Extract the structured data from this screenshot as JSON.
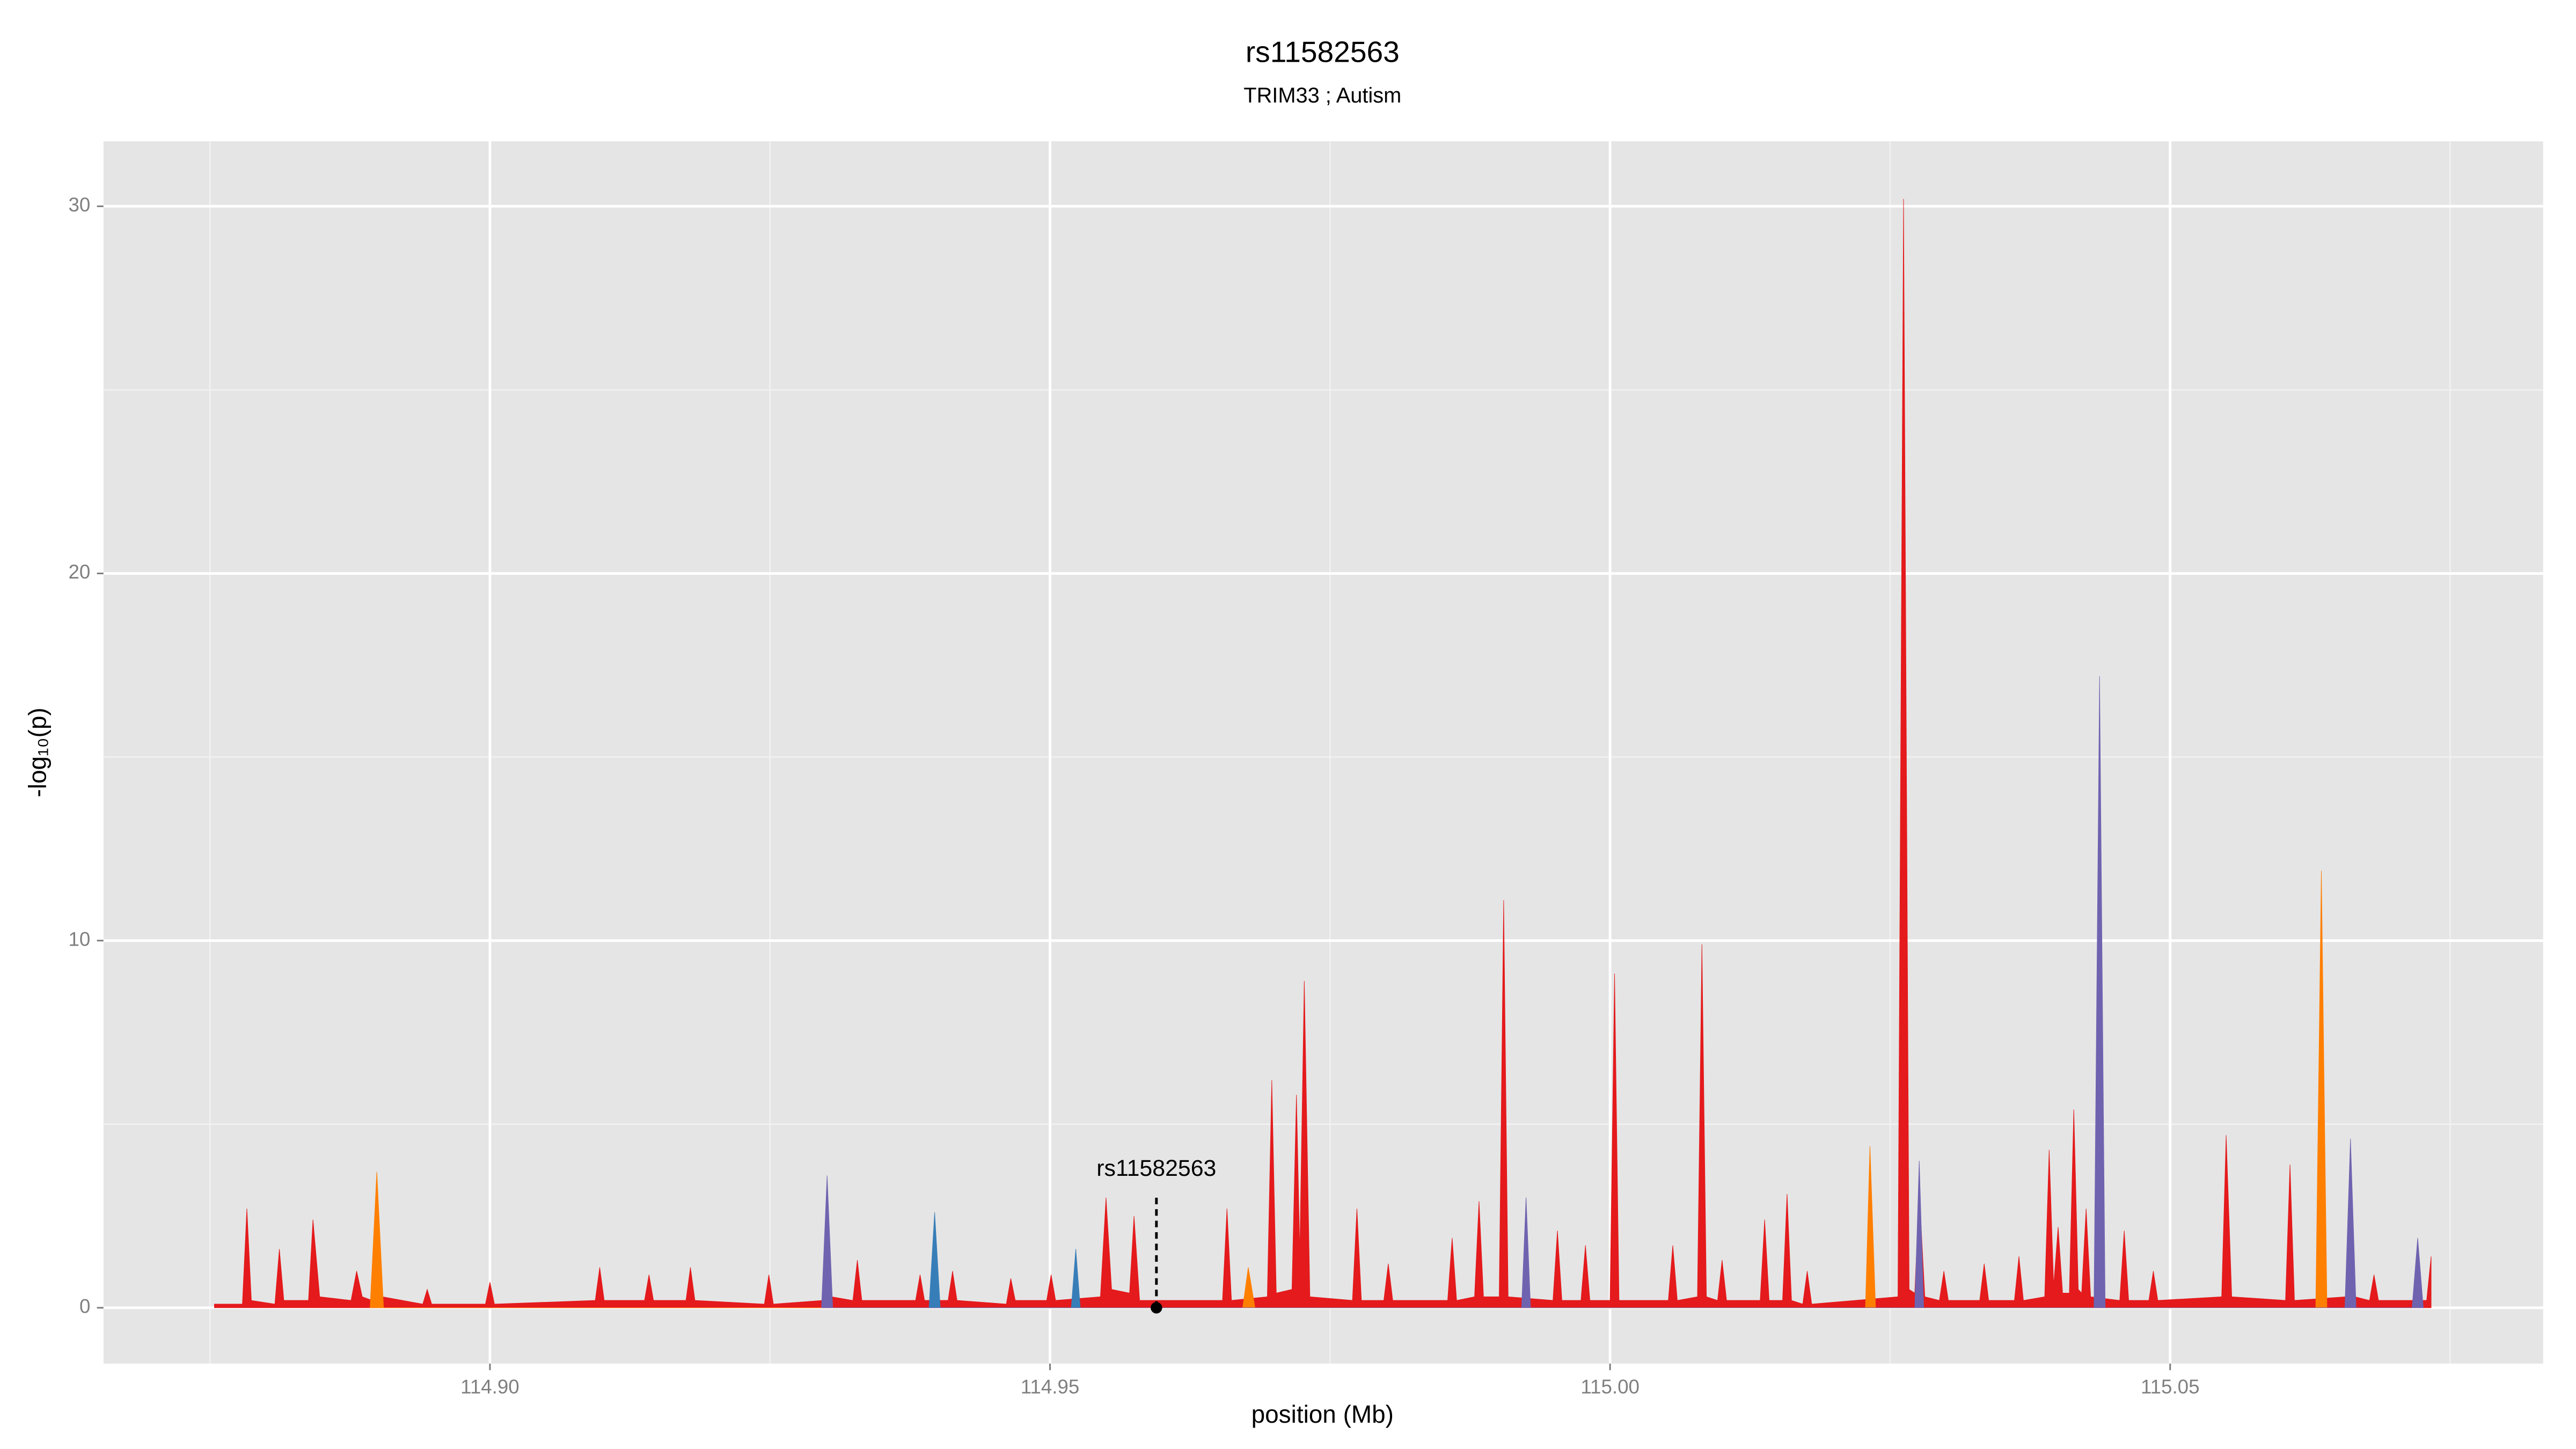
{
  "chart_data": {
    "type": "area",
    "title": "rs11582563",
    "subtitle": "TRIM33 ; Autism",
    "x_label": "position (Mb)",
    "y_label": "-log₁₀(p)",
    "xlim": [
      114.8655,
      115.0833
    ],
    "ylim": [
      -1.52,
      31.77
    ],
    "xticks": [
      {
        "value": 114.9,
        "label": "114.90"
      },
      114.95,
      {
        "value": 115.0,
        "label": "115.00"
      },
      115.05
    ],
    "yticks": [
      0,
      10,
      20,
      30
    ],
    "grid": true,
    "annotation": {
      "text": "rs11582563",
      "x": 114.9595,
      "y": 0
    },
    "series": [
      {
        "color": "#e41a1c",
        "x": [
          114.8754,
          114.8779,
          114.8783,
          114.8787,
          114.8808,
          114.8812,
          114.8816,
          114.8838,
          114.8842,
          114.8848,
          114.8876,
          114.8881,
          114.8886,
          114.8895,
          114.8899,
          114.8904,
          114.894,
          114.8944,
          114.8948,
          114.8996,
          114.9,
          114.9004,
          114.9094,
          114.9098,
          114.9102,
          114.9138,
          114.9142,
          114.9146,
          114.9175,
          114.9179,
          114.9183,
          114.9245,
          114.9249,
          114.9253,
          114.9297,
          114.9301,
          114.9305,
          114.9324,
          114.9328,
          114.9332,
          114.938,
          114.9384,
          114.9388,
          114.9409,
          114.9413,
          114.9417,
          114.9461,
          114.9465,
          114.9469,
          114.9497,
          114.9501,
          114.9505,
          114.9545,
          114.955,
          114.9555,
          114.9571,
          114.9575,
          114.958,
          114.9654,
          114.9658,
          114.9662,
          114.9694,
          114.9698,
          114.9702,
          114.9716,
          114.972,
          114.9723,
          114.9727,
          114.9732,
          114.977,
          114.9774,
          114.9778,
          114.9798,
          114.9802,
          114.9806,
          114.9855,
          114.9859,
          114.9863,
          114.9879,
          114.9883,
          114.9887,
          114.9901,
          114.9905,
          114.9909,
          114.9949,
          114.9953,
          114.9957,
          114.9974,
          114.9978,
          114.9982,
          115.0,
          115.0004,
          115.0008,
          115.0052,
          115.0056,
          115.006,
          115.0078,
          115.0082,
          115.0086,
          115.0096,
          115.01,
          115.0104,
          115.0134,
          115.0138,
          115.0142,
          115.0154,
          115.0158,
          115.0162,
          115.0172,
          115.0176,
          115.018,
          115.0257,
          115.0262,
          115.0267,
          115.0272,
          115.0276,
          115.0281,
          115.0294,
          115.0298,
          115.0302,
          115.033,
          115.0334,
          115.0338,
          115.0361,
          115.0365,
          115.0369,
          115.0388,
          115.0392,
          115.0396,
          115.04,
          115.0404,
          115.041,
          115.0414,
          115.0418,
          115.0421,
          115.0425,
          115.0429,
          115.0455,
          115.0459,
          115.0463,
          115.0481,
          115.0485,
          115.0489,
          115.0546,
          115.055,
          115.0555,
          115.0603,
          115.0607,
          115.0611,
          115.0657,
          115.0661,
          115.0665,
          115.0678,
          115.0682,
          115.0686,
          115.0717,
          115.0721,
          115.0725,
          115.0729,
          115.0733
        ],
        "values": [
          0.1,
          0.1,
          2.7,
          0.2,
          0.1,
          1.6,
          0.2,
          0.2,
          2.4,
          0.3,
          0.2,
          1,
          0.3,
          0.2,
          2.5,
          0.3,
          0.1,
          0.5,
          0.1,
          0.1,
          0.7,
          0.1,
          0.2,
          1.1,
          0.2,
          0.2,
          0.9,
          0.2,
          0.2,
          1.1,
          0.2,
          0.1,
          0.9,
          0.1,
          0.2,
          3.2,
          0.3,
          0.2,
          1.3,
          0.2,
          0.2,
          0.9,
          0.2,
          0.2,
          1,
          0.2,
          0.1,
          0.8,
          0.2,
          0.2,
          0.9,
          0.2,
          0.3,
          3,
          0.5,
          0.4,
          2.5,
          0.2,
          0.2,
          2.7,
          0.2,
          0.3,
          6.2,
          0.4,
          0.5,
          5.8,
          1.5,
          8.9,
          0.3,
          0.2,
          2.7,
          0.2,
          0.2,
          1.2,
          0.2,
          0.2,
          1.9,
          0.2,
          0.3,
          2.9,
          0.3,
          0.3,
          11.1,
          0.3,
          0.2,
          2.1,
          0.2,
          0.2,
          1.7,
          0.2,
          0.2,
          9.1,
          0.2,
          0.2,
          1.7,
          0.2,
          0.3,
          9.9,
          0.3,
          0.2,
          1.3,
          0.2,
          0.2,
          2.4,
          0.2,
          0.2,
          3.1,
          0.2,
          0.1,
          1,
          0.1,
          0.3,
          30.2,
          0.5,
          0.4,
          3.2,
          0.3,
          0.2,
          1,
          0.2,
          0.2,
          1.2,
          0.2,
          0.2,
          1.4,
          0.2,
          0.3,
          4.3,
          0.6,
          2.2,
          0.4,
          0.4,
          5.4,
          0.5,
          0.4,
          2.7,
          0.3,
          0.2,
          2.1,
          0.2,
          0.2,
          1,
          0.2,
          0.3,
          4.7,
          0.3,
          0.2,
          3.9,
          0.2,
          0.3,
          3.5,
          0.3,
          0.2,
          0.9,
          0.2,
          0.2,
          1.6,
          0.2,
          0.2,
          1.4
        ]
      },
      {
        "color": "#ff7f00",
        "x": [
          114.8893,
          114.8899,
          114.8905,
          114.9672,
          114.9677,
          114.9683,
          115.0228,
          115.0232,
          115.0237,
          115.063,
          115.0635,
          115.064
        ],
        "values": [
          0,
          3.7,
          0,
          0,
          1.1,
          0,
          0,
          4.4,
          0,
          0,
          11.9,
          0
        ]
      },
      {
        "color": "#377eb8",
        "x": [
          114.9392,
          114.9397,
          114.9402,
          114.9519,
          114.9523,
          114.9527
        ],
        "values": [
          0,
          2.6,
          0,
          0,
          1.6,
          0
        ]
      },
      {
        "color": "#6f63b0",
        "x": [
          114.9296,
          114.9301,
          114.9306,
          114.9921,
          114.9925,
          114.9929,
          115.0272,
          115.0276,
          115.028,
          115.0432,
          115.0437,
          115.0442,
          115.0656,
          115.0661,
          115.0666,
          115.0716,
          115.0721,
          115.0726
        ],
        "values": [
          0,
          3.6,
          0,
          0,
          3,
          0,
          0,
          4,
          0,
          0,
          17.2,
          0,
          0,
          4.6,
          0,
          0,
          1.9,
          0
        ]
      }
    ]
  }
}
